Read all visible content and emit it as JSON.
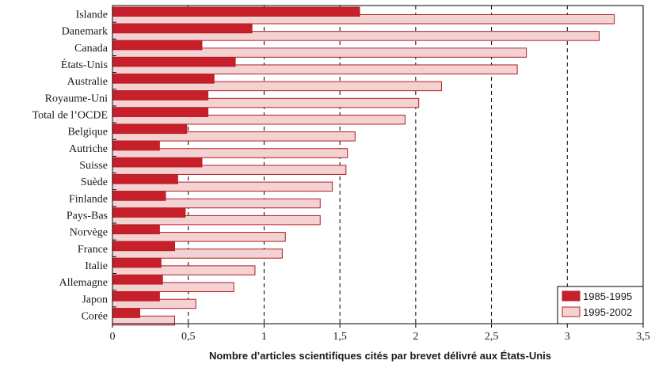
{
  "chart_data": {
    "type": "bar",
    "orientation": "horizontal",
    "title": "",
    "xlabel": "Nombre d’articles scientifiques cités par brevet délivré aux États-Unis",
    "ylabel": "",
    "xlim": [
      0,
      3.5
    ],
    "xticks": [
      0,
      0.5,
      1,
      1.5,
      2,
      2.5,
      3,
      3.5
    ],
    "xtick_labels": [
      "0",
      "0,5",
      "1",
      "1,5",
      "2",
      "2,5",
      "3",
      "3,5"
    ],
    "grid": "vertical dashed",
    "legend_position": "bottom-right",
    "categories": [
      "Islande",
      "Danemark",
      "Canada",
      "États-Unis",
      "Australie",
      "Royaume-Uni",
      "Total de l’OCDE",
      "Belgique",
      "Autriche",
      "Suisse",
      "Suède",
      "Finlande",
      "Pays-Bas",
      "Norvège",
      "France",
      "Italie",
      "Allemagne",
      "Japon",
      "Corée"
    ],
    "series": [
      {
        "name": "1985-1995",
        "color": "#c8202a",
        "values": [
          1.63,
          0.92,
          0.59,
          0.81,
          0.67,
          0.63,
          0.63,
          0.49,
          0.31,
          0.59,
          0.43,
          0.35,
          0.48,
          0.31,
          0.41,
          0.32,
          0.33,
          0.31,
          0.18
        ]
      },
      {
        "name": "1995-2002",
        "color": "#f5d2d2",
        "values": [
          3.31,
          3.21,
          2.73,
          2.67,
          2.17,
          2.02,
          1.93,
          1.6,
          1.55,
          1.54,
          1.45,
          1.37,
          1.37,
          1.14,
          1.12,
          0.94,
          0.8,
          0.55,
          0.41
        ]
      }
    ]
  },
  "colors": {
    "outline": "#b01e26",
    "axis": "#000000"
  }
}
